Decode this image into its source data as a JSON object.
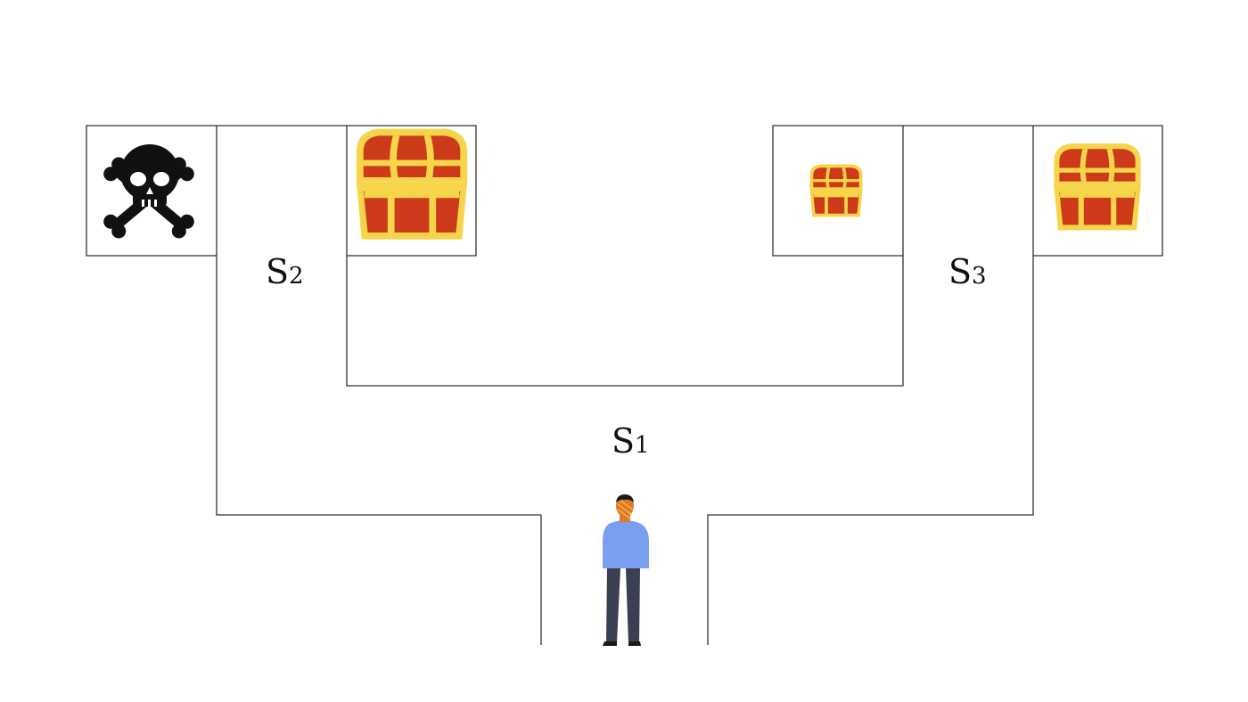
{
  "states": {
    "s1": {
      "letter": "S",
      "index": "1"
    },
    "s2": {
      "letter": "S",
      "index": "2"
    },
    "s3": {
      "letter": "S",
      "index": "3"
    }
  },
  "cells": [
    {
      "name": "skull-cell",
      "icon": "skull-crossbones-icon"
    },
    {
      "name": "large-chest-cell-left",
      "icon": "treasure-chest-icon"
    },
    {
      "name": "small-chest-cell",
      "icon": "treasure-chest-icon"
    },
    {
      "name": "medium-chest-cell-right",
      "icon": "treasure-chest-icon"
    }
  ],
  "agent": {
    "icon": "person-icon"
  },
  "colors": {
    "line": "#333333",
    "chest_red": "#cc3a1a",
    "chest_gold": "#f6d54a",
    "skull": "#111111",
    "shirt": "#7b9ff0",
    "pants": "#3a3f52",
    "skin": "#e0792a",
    "hair": "#1a1a1a"
  }
}
